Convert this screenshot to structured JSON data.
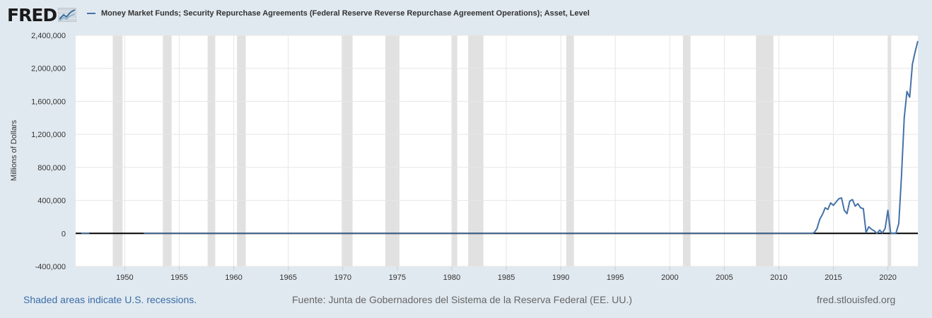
{
  "header": {
    "logo_text": "FRED",
    "logo_icon": "chart-line-icon",
    "series_title": "Money Market Funds; Security Repurchase Agreements (Federal Reserve Reverse Repurchase Agreement Operations); Asset, Level"
  },
  "footer": {
    "recession_note": "Shaded areas indicate U.S. recessions.",
    "source": "Fuente: Junta de Gobernadores del Sistema de la Reserva Federal (EE. UU.)",
    "site": "fred.stlouisfed.org"
  },
  "colors": {
    "line": "#4572a7",
    "recession": "#e1e1e1",
    "background": "#e1e9f0"
  },
  "chart_data": {
    "type": "line",
    "ylabel": "Millions of Dollars",
    "xlim": [
      1945.5,
      2022.75
    ],
    "ylim": [
      -400000,
      2400000
    ],
    "y_ticks": [
      -400000,
      0,
      400000,
      800000,
      1200000,
      1600000,
      2000000,
      2400000
    ],
    "y_tick_labels": [
      "-400,000",
      "0",
      "400,000",
      "800,000",
      "1,200,000",
      "1,600,000",
      "2,000,000",
      "2,400,000"
    ],
    "x_ticks": [
      1950,
      1955,
      1960,
      1965,
      1970,
      1975,
      1980,
      1985,
      1990,
      1995,
      2000,
      2005,
      2010,
      2015,
      2020
    ],
    "x_tick_labels": [
      "1950",
      "1955",
      "1960",
      "1965",
      "1970",
      "1975",
      "1980",
      "1985",
      "1990",
      "1995",
      "2000",
      "2005",
      "2010",
      "2015",
      "2020"
    ],
    "grid": true,
    "recessions": [
      [
        1948.9,
        1949.8
      ],
      [
        1953.5,
        1954.3
      ],
      [
        1957.6,
        1958.3
      ],
      [
        1960.3,
        1961.1
      ],
      [
        1969.9,
        1970.9
      ],
      [
        1973.9,
        1975.2
      ],
      [
        1980.0,
        1980.5
      ],
      [
        1981.5,
        1982.9
      ],
      [
        1990.5,
        1991.2
      ],
      [
        2001.2,
        2001.9
      ],
      [
        2007.9,
        2009.5
      ],
      [
        2020.0,
        2020.3
      ]
    ],
    "gap_segments": [
      {
        "x": [
          1946.0,
          1946.75
        ],
        "y": [
          1000,
          1000
        ]
      },
      {
        "x": [
          1951.75,
          2013.0
        ],
        "y": [
          1000,
          1000
        ]
      }
    ],
    "series": [
      {
        "x": [
          2013.0,
          2013.25,
          2013.5,
          2013.75,
          2014.0,
          2014.25,
          2014.5,
          2014.75,
          2015.0,
          2015.25,
          2015.5,
          2015.75,
          2016.0,
          2016.25,
          2016.5,
          2016.75,
          2017.0,
          2017.25,
          2017.5,
          2017.75,
          2018.0,
          2018.25,
          2018.5,
          2018.75,
          2019.0,
          2019.25,
          2019.5,
          2019.75,
          2020.0,
          2020.25,
          2020.5,
          2020.75,
          2021.0,
          2021.25,
          2021.5,
          2021.75,
          2022.0,
          2022.25,
          2022.5,
          2022.75
        ],
        "values": [
          0,
          10000,
          60000,
          170000,
          230000,
          310000,
          290000,
          370000,
          340000,
          380000,
          420000,
          430000,
          280000,
          240000,
          390000,
          410000,
          330000,
          360000,
          310000,
          300000,
          10000,
          80000,
          50000,
          30000,
          0,
          40000,
          5000,
          60000,
          280000,
          5000,
          0,
          5000,
          120000,
          700000,
          1400000,
          1720000,
          1650000,
          2050000,
          2200000,
          2330000
        ]
      }
    ]
  }
}
